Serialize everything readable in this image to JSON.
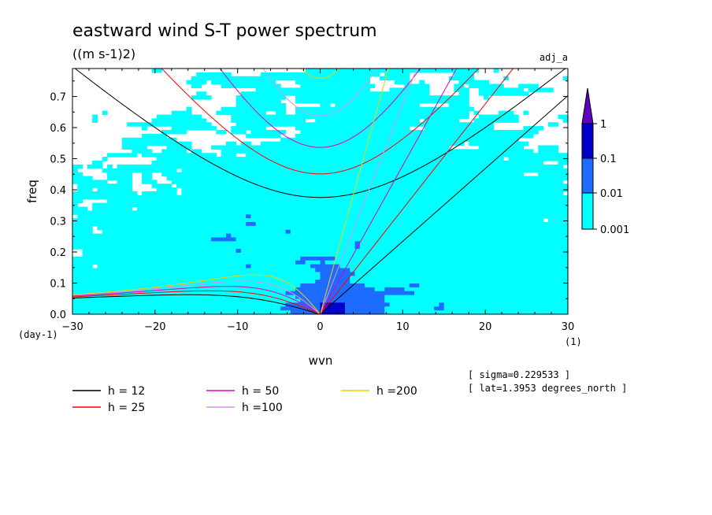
{
  "chart_data": {
    "type": "heatmap",
    "title": "eastward wind S-T power spectrum",
    "units": "((m s-1)2)",
    "corner_label": "adj_a",
    "xlabel": "wvn",
    "ylabel": "freq",
    "x_unit": "(1)",
    "y_unit": "(day-1)",
    "xlim": [
      -30,
      30
    ],
    "ylim": [
      0.0,
      0.79
    ],
    "x_ticks": [
      -30,
      -20,
      -10,
      0,
      10,
      20,
      30
    ],
    "y_ticks": [
      0.0,
      0.1,
      0.2,
      0.3,
      0.4,
      0.5,
      0.6,
      0.7
    ],
    "colorbar": {
      "levels": [
        "0.001",
        "0.01",
        "0.1",
        "1"
      ],
      "colors": [
        "#00ffff",
        "#1e6cff",
        "#0000c8",
        "#6000c0"
      ]
    },
    "dispersion_curves": [
      {
        "label": "h = 12",
        "h": 12,
        "color": "#000000"
      },
      {
        "label": "h = 25",
        "h": 25,
        "color": "#ff0000"
      },
      {
        "label": "h = 50",
        "h": 50,
        "color": "#e000c0"
      },
      {
        "label": "h =100",
        "h": 100,
        "color": "#e090e0"
      },
      {
        "label": "h =200",
        "h": 200,
        "color": "#f0d000"
      }
    ],
    "annotations": [
      "[ sigma=0.229533 ]",
      "[ lat=1.3953 degrees_north ]"
    ]
  }
}
